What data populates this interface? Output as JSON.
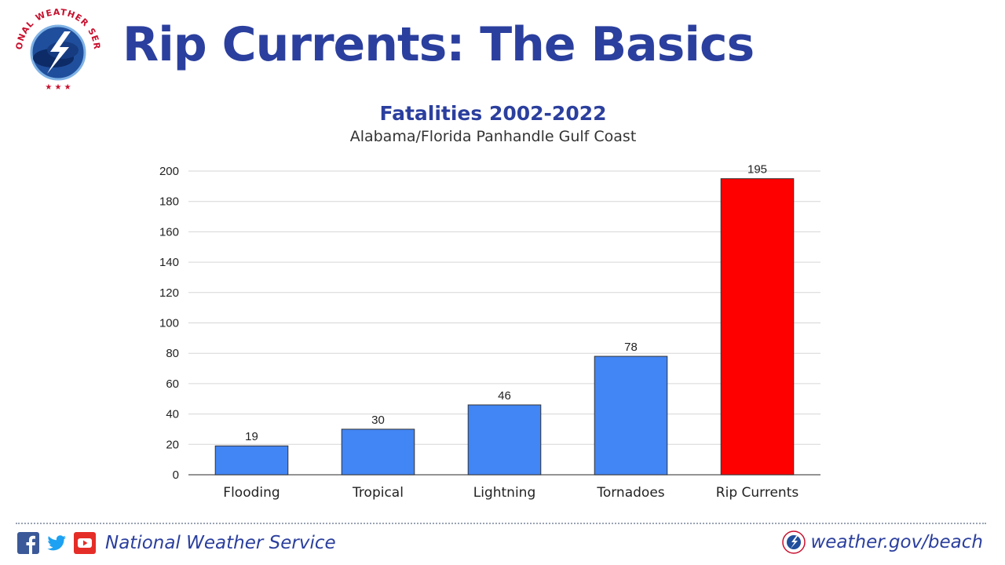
{
  "header": {
    "title": "Rip Currents: The Basics",
    "logo_text": "NATIONAL WEATHER SERVICE"
  },
  "chart_data": {
    "type": "bar",
    "title": "Fatalities 2002-2022",
    "subtitle": "Alabama/Florida Panhandle Gulf Coast",
    "categories": [
      "Flooding",
      "Tropical",
      "Lightning",
      "Tornadoes",
      "Rip Currents"
    ],
    "values": [
      19,
      30,
      46,
      78,
      195
    ],
    "bar_colors": [
      "#4285f4",
      "#4285f4",
      "#4285f4",
      "#4285f4",
      "#ff0000"
    ],
    "ylim": [
      0,
      200
    ],
    "yticks": [
      0,
      20,
      40,
      60,
      80,
      100,
      120,
      140,
      160,
      180,
      200
    ],
    "grid": true,
    "data_labels": true
  },
  "footer": {
    "org_name": "National Weather Service",
    "url": "weather.gov/beach",
    "social_icons": [
      "facebook-icon",
      "twitter-icon",
      "youtube-icon"
    ]
  },
  "colors": {
    "brand_blue": "#2b3f9e",
    "bar_blue": "#4285f4",
    "highlight_red": "#ff0000",
    "facebook": "#3b5998",
    "twitter": "#1da1f2",
    "youtube": "#e52d27"
  }
}
